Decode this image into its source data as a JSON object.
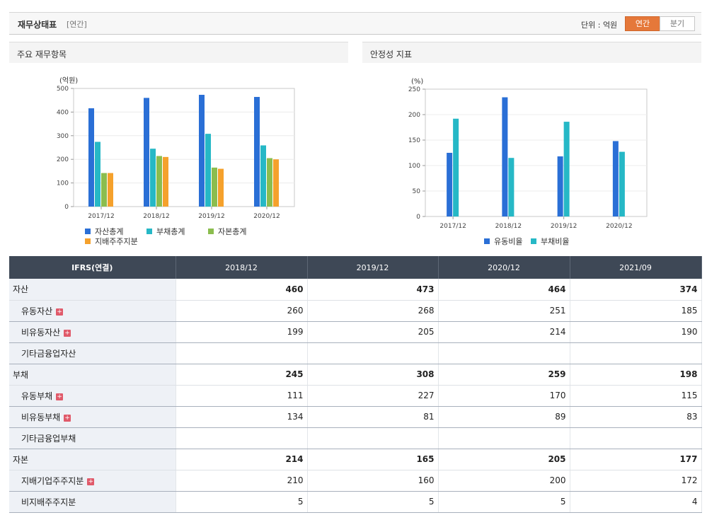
{
  "header": {
    "title": "재무상태표",
    "subtitle": "[연간]",
    "unit_label": "단위 : 억원",
    "toggle_annual": "연간",
    "toggle_quarter": "분기"
  },
  "panels": {
    "left_title": "주요 재무항목",
    "right_title": "안정성 지표"
  },
  "chart_data": [
    {
      "type": "bar",
      "title": "주요 재무항목",
      "ylabel": "(억원)",
      "ylim": [
        0,
        500
      ],
      "yticks": [
        0,
        100,
        200,
        300,
        400,
        500
      ],
      "categories": [
        "2017/12",
        "2018/12",
        "2019/12",
        "2020/12"
      ],
      "series": [
        {
          "name": "자산총계",
          "color": "#2a6fd6",
          "values": [
            416,
            460,
            473,
            464
          ]
        },
        {
          "name": "부채총계",
          "color": "#26b8c6",
          "values": [
            274,
            245,
            308,
            259
          ]
        },
        {
          "name": "자본총계",
          "color": "#8bbd4e",
          "values": [
            142,
            214,
            165,
            205
          ]
        },
        {
          "name": "지배주주지분",
          "color": "#f5a12c",
          "values": [
            142,
            210,
            160,
            200
          ]
        }
      ]
    },
    {
      "type": "bar",
      "title": "안정성 지표",
      "ylabel": "(%)",
      "ylim": [
        0,
        250
      ],
      "yticks": [
        0,
        50,
        100,
        150,
        200,
        250
      ],
      "categories": [
        "2017/12",
        "2018/12",
        "2019/12",
        "2020/12"
      ],
      "series": [
        {
          "name": "유동비율",
          "color": "#2a6fd6",
          "values": [
            125,
            234,
            118,
            148
          ]
        },
        {
          "name": "부채비율",
          "color": "#26b8c6",
          "values": [
            192,
            115,
            186,
            127
          ]
        }
      ]
    }
  ],
  "table": {
    "headers": [
      "IFRS(연결)",
      "2018/12",
      "2019/12",
      "2020/12",
      "2021/09"
    ],
    "rows": [
      {
        "label": "자산",
        "values": [
          "460",
          "473",
          "464",
          "374"
        ],
        "bold": true,
        "sub": false,
        "plus": false
      },
      {
        "label": "유동자산",
        "values": [
          "260",
          "268",
          "251",
          "185"
        ],
        "bold": false,
        "sub": true,
        "plus": true
      },
      {
        "label": "비유동자산",
        "values": [
          "199",
          "205",
          "214",
          "190"
        ],
        "bold": false,
        "sub": true,
        "plus": true
      },
      {
        "label": "기타금융업자산",
        "values": [
          "",
          "",
          "",
          ""
        ],
        "bold": false,
        "sub": true,
        "plus": false
      },
      {
        "label": "부채",
        "values": [
          "245",
          "308",
          "259",
          "198"
        ],
        "bold": true,
        "sub": false,
        "plus": false
      },
      {
        "label": "유동부채",
        "values": [
          "111",
          "227",
          "170",
          "115"
        ],
        "bold": false,
        "sub": true,
        "plus": true
      },
      {
        "label": "비유동부채",
        "values": [
          "134",
          "81",
          "89",
          "83"
        ],
        "bold": false,
        "sub": true,
        "plus": true
      },
      {
        "label": "기타금융업부채",
        "values": [
          "",
          "",
          "",
          ""
        ],
        "bold": false,
        "sub": true,
        "plus": false
      },
      {
        "label": "자본",
        "values": [
          "214",
          "165",
          "205",
          "177"
        ],
        "bold": true,
        "sub": false,
        "plus": false
      },
      {
        "label": "지배기업주주지분",
        "values": [
          "210",
          "160",
          "200",
          "172"
        ],
        "bold": false,
        "sub": true,
        "plus": true
      },
      {
        "label": "비지배주주지분",
        "values": [
          "5",
          "5",
          "5",
          "4"
        ],
        "bold": false,
        "sub": true,
        "plus": false
      }
    ],
    "plus_icon": "+"
  }
}
